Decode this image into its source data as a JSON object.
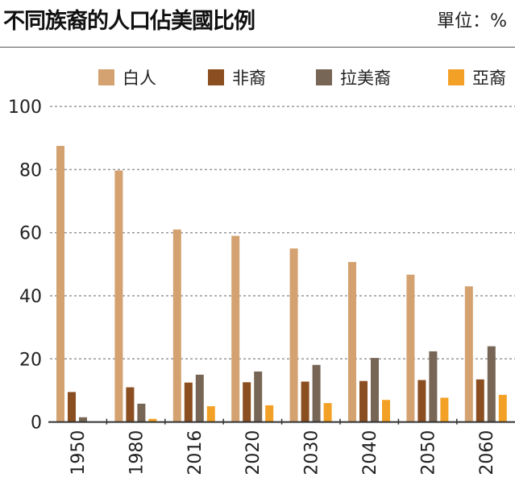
{
  "chart_data": {
    "type": "bar",
    "title": "不同族裔的人口佔美國比例",
    "unit_label": "單位：%",
    "categories": [
      "1950",
      "1980",
      "2016",
      "2020",
      "2030",
      "2040",
      "2050",
      "2060"
    ],
    "series": [
      {
        "name": "白人",
        "color": "#d4a270",
        "values": [
          87.5,
          79.7,
          61,
          59,
          55,
          50.7,
          46.7,
          43
        ]
      },
      {
        "name": "非裔",
        "color": "#8b4e20",
        "values": [
          9.5,
          11,
          12.5,
          12.6,
          12.8,
          13,
          13.3,
          13.5
        ]
      },
      {
        "name": "拉美裔",
        "color": "#776655",
        "values": [
          1.5,
          5.8,
          15,
          16,
          18.1,
          20.3,
          22.4,
          24
        ]
      },
      {
        "name": "亞裔",
        "color": "#f3a126",
        "values": [
          0,
          1,
          5,
          5.3,
          6,
          7,
          7.7,
          8.6
        ]
      }
    ],
    "ylim": [
      0,
      100
    ],
    "yticks": [
      0,
      20,
      40,
      60,
      80,
      100
    ],
    "grid": true,
    "legend_position": "top"
  }
}
